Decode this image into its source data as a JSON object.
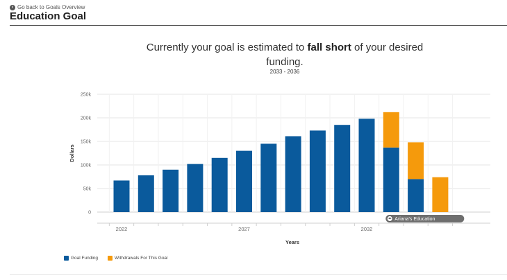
{
  "nav": {
    "back_label": "Go back to Goals Overview",
    "back_icon": "circle-arrow-left-icon"
  },
  "page": {
    "title": "Education Goal"
  },
  "summary": {
    "headline_pre": "Currently your goal is estimated to ",
    "headline_bold": "fall short",
    "headline_post": " of your desired funding.",
    "range": "2033 - 2036"
  },
  "colors": {
    "funding": "#0a5a9c",
    "withdrawals": "#f59a0c",
    "grid": "#e6e6e6",
    "tooltip_bg": "#6e6e6e"
  },
  "chart_data": {
    "type": "bar",
    "stacked": true,
    "xlabel": "Years",
    "ylabel": "Dollars",
    "ylim": [
      0,
      250000
    ],
    "y_ticks": [
      0,
      50000,
      100000,
      150000,
      200000,
      250000
    ],
    "y_tick_labels": [
      "0",
      "50k",
      "100k",
      "150k",
      "200k",
      "250k"
    ],
    "x_tick_labels": [
      {
        "year": 2022,
        "label": "2022"
      },
      {
        "year": 2027,
        "label": "2027"
      },
      {
        "year": 2032,
        "label": "2032"
      }
    ],
    "categories": [
      2022,
      2023,
      2024,
      2025,
      2026,
      2027,
      2028,
      2029,
      2030,
      2031,
      2032,
      2033,
      2034,
      2035
    ],
    "series": [
      {
        "name": "Goal Funding",
        "values": [
          67000,
          78000,
          90000,
          102000,
          115000,
          130000,
          145000,
          161000,
          173000,
          185000,
          198000,
          137000,
          70000,
          0
        ]
      },
      {
        "name": "Withdrawals For This Goal",
        "values": [
          0,
          0,
          0,
          0,
          0,
          0,
          0,
          0,
          0,
          0,
          0,
          75000,
          78000,
          74000
        ]
      }
    ],
    "grid": true,
    "legend_position": "bottom-left",
    "annotation": {
      "label": "Ariana's Education",
      "icon": "graduation-cap-icon",
      "year": 2033
    }
  }
}
